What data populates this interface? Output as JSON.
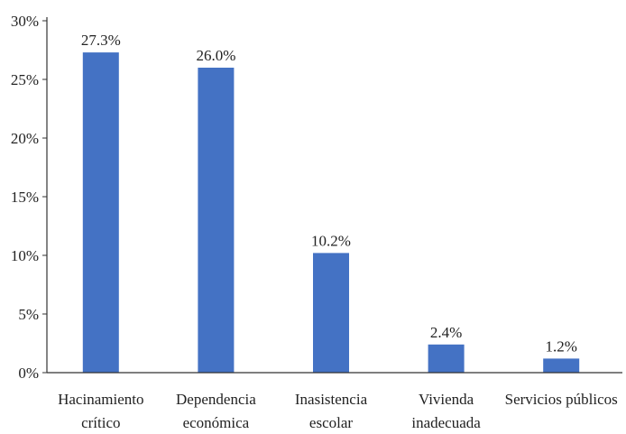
{
  "chart_data": {
    "type": "bar",
    "categories": [
      [
        "Hacinamiento",
        "crítico"
      ],
      [
        "Dependencia",
        "económica"
      ],
      [
        "Inasistencia",
        "escolar"
      ],
      [
        "Vivienda",
        "inadecuada"
      ],
      [
        "Servicios públicos"
      ]
    ],
    "values": [
      27.3,
      26.0,
      10.2,
      2.4,
      1.2
    ],
    "value_labels": [
      "27.3%",
      "26.0%",
      "10.2%",
      "2.4%",
      "1.2%"
    ],
    "yticks": [
      0,
      5,
      10,
      15,
      20,
      25,
      30
    ],
    "ytick_labels": [
      "0%",
      "5%",
      "10%",
      "15%",
      "20%",
      "25%",
      "30%"
    ],
    "ylim": [
      0,
      30
    ],
    "title": "",
    "xlabel": "",
    "ylabel": "",
    "grid": false,
    "bar_color": "#4472C4",
    "axis_color": "#333333"
  }
}
